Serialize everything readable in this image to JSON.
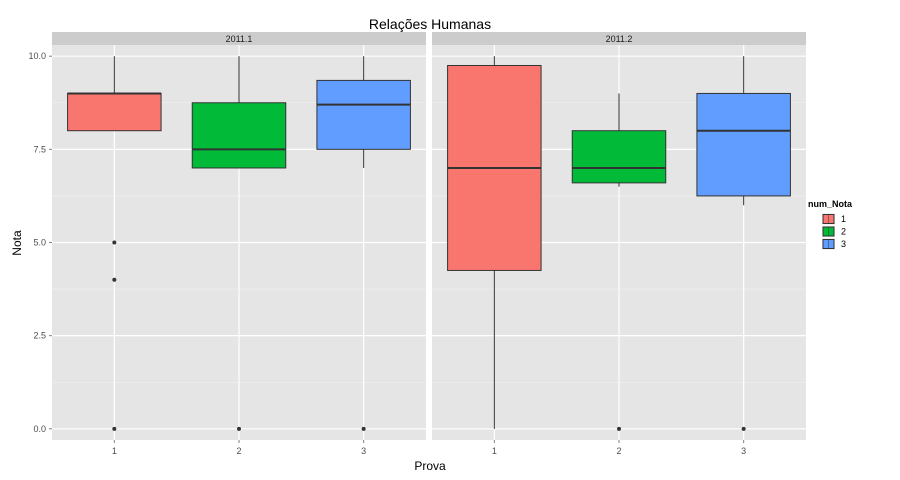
{
  "chart_data": {
    "type": "boxplot",
    "title": "Relações Humanas",
    "xlabel": "Prova",
    "ylabel": "Nota",
    "categories": [
      "1",
      "2",
      "3"
    ],
    "ylim": [
      -0.3,
      10.3
    ],
    "yticks": [
      0.0,
      2.5,
      5.0,
      7.5,
      10.0
    ],
    "ytick_labels": [
      "0.0",
      "2.5",
      "5.0",
      "7.5",
      "10.0"
    ],
    "grid": true,
    "legend": {
      "title": "num_Nota",
      "position": "right",
      "entries": [
        {
          "label": "1",
          "color": "#F8766D"
        },
        {
          "label": "2",
          "color": "#00BA38"
        },
        {
          "label": "3",
          "color": "#619CFF"
        }
      ]
    },
    "facets": [
      {
        "label": "2011.1",
        "boxes": [
          {
            "x": "1",
            "series": "1",
            "color": "#F8766D",
            "whisker_low": 8.0,
            "q1": 8.0,
            "median": 9.0,
            "q3": 9.0,
            "whisker_high": 10.0,
            "outliers": [
              5.0,
              4.0,
              0.0
            ]
          },
          {
            "x": "2",
            "series": "2",
            "color": "#00BA38",
            "whisker_low": 7.0,
            "q1": 7.0,
            "median": 7.5,
            "q3": 8.75,
            "whisker_high": 10.0,
            "outliers": [
              0.0
            ]
          },
          {
            "x": "3",
            "series": "3",
            "color": "#619CFF",
            "whisker_low": 7.0,
            "q1": 7.5,
            "median": 8.7,
            "q3": 9.35,
            "whisker_high": 10.0,
            "outliers": [
              0.0
            ]
          }
        ]
      },
      {
        "label": "2011.2",
        "boxes": [
          {
            "x": "1",
            "series": "1",
            "color": "#F8766D",
            "whisker_low": 0.0,
            "q1": 4.25,
            "median": 7.0,
            "q3": 9.75,
            "whisker_high": 10.0,
            "outliers": []
          },
          {
            "x": "2",
            "series": "2",
            "color": "#00BA38",
            "whisker_low": 6.5,
            "q1": 6.6,
            "median": 7.0,
            "q3": 8.0,
            "whisker_high": 9.0,
            "outliers": [
              0.0
            ]
          },
          {
            "x": "3",
            "series": "3",
            "color": "#619CFF",
            "whisker_low": 6.0,
            "q1": 6.25,
            "median": 8.0,
            "q3": 9.0,
            "whisker_high": 10.0,
            "outliers": [
              0.0
            ]
          }
        ]
      }
    ]
  }
}
